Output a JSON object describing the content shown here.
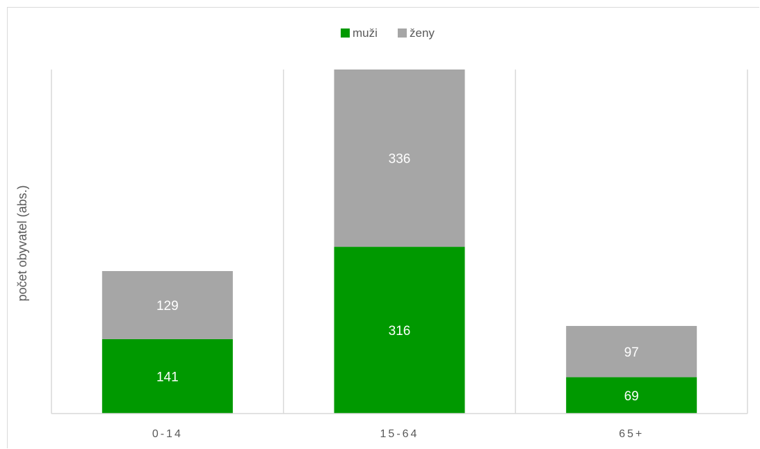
{
  "chart_data": {
    "type": "bar",
    "stacked": true,
    "categories": [
      "0-14",
      "15-64",
      "65+"
    ],
    "series": [
      {
        "name": "muži",
        "values": [
          141,
          316,
          69
        ],
        "color": "#009900"
      },
      {
        "name": "ženy",
        "values": [
          129,
          336,
          97
        ],
        "color": "#a6a6a6"
      }
    ],
    "ylabel": "počet obyvatel (abs.)",
    "xlabel": "",
    "ylim": [
      0,
      652
    ],
    "grid": "vertical category separators",
    "legend_position": "top",
    "data_label_color": "#ffffff"
  }
}
